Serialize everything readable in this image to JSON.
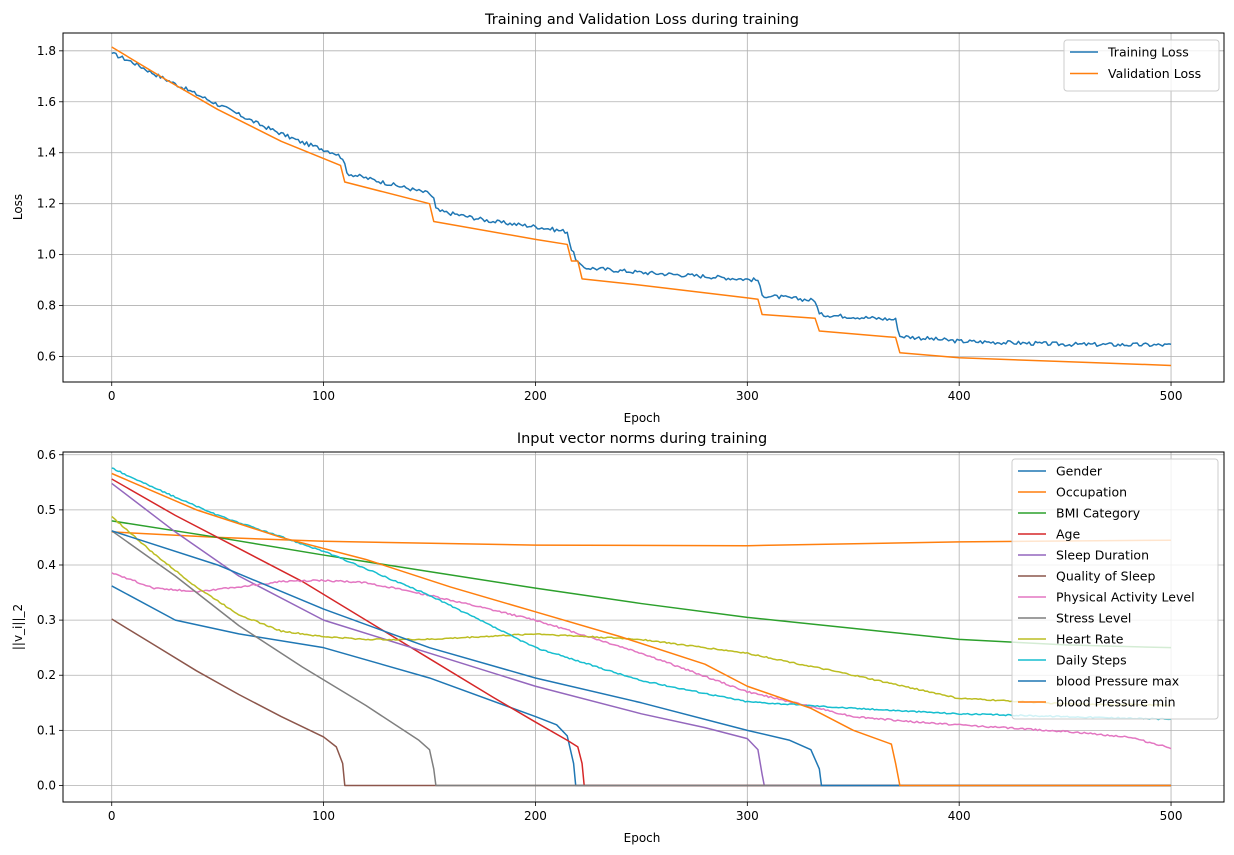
{
  "chart_data": [
    {
      "type": "line",
      "title": "Training and Validation Loss during training",
      "xlabel": "Epoch",
      "ylabel": "Loss",
      "xlim": [
        -23,
        525
      ],
      "ylim": [
        0.5,
        1.87
      ],
      "xticks": [
        0,
        100,
        200,
        300,
        400,
        500
      ],
      "yticks": [
        0.6,
        0.8,
        1.0,
        1.2,
        1.4,
        1.6,
        1.8
      ],
      "ytick_decimals": 1,
      "grid": true,
      "legend_position": "top-right",
      "series": [
        {
          "name": "Training Loss",
          "color": "#1f77b4",
          "noise": 0.008,
          "points": [
            [
              0,
              1.79
            ],
            [
              10,
              1.755
            ],
            [
              20,
              1.71
            ],
            [
              30,
              1.67
            ],
            [
              50,
              1.59
            ],
            [
              70,
              1.51
            ],
            [
              90,
              1.44
            ],
            [
              105,
              1.4
            ],
            [
              109,
              1.38
            ],
            [
              111,
              1.32
            ],
            [
              130,
              1.28
            ],
            [
              150,
              1.24
            ],
            [
              152,
              1.22
            ],
            [
              153,
              1.18
            ],
            [
              155,
              1.17
            ],
            [
              180,
              1.13
            ],
            [
              200,
              1.11
            ],
            [
              215,
              1.09
            ],
            [
              217,
              1.02
            ],
            [
              220,
              0.97
            ],
            [
              222,
              0.95
            ],
            [
              250,
              0.93
            ],
            [
              280,
              0.915
            ],
            [
              305,
              0.9
            ],
            [
              307,
              0.84
            ],
            [
              332,
              0.82
            ],
            [
              334,
              0.765
            ],
            [
              370,
              0.745
            ],
            [
              372,
              0.68
            ],
            [
              400,
              0.66
            ],
            [
              450,
              0.648
            ],
            [
              500,
              0.645
            ]
          ]
        },
        {
          "name": "Validation Loss",
          "color": "#ff7f0e",
          "noise": 0,
          "points": [
            [
              0,
              1.815
            ],
            [
              25,
              1.69
            ],
            [
              50,
              1.57
            ],
            [
              80,
              1.445
            ],
            [
              108,
              1.35
            ],
            [
              110,
              1.285
            ],
            [
              150,
              1.2
            ],
            [
              152,
              1.13
            ],
            [
              200,
              1.06
            ],
            [
              215,
              1.04
            ],
            [
              217,
              0.975
            ],
            [
              220,
              0.975
            ],
            [
              222,
              0.905
            ],
            [
              250,
              0.88
            ],
            [
              300,
              0.83
            ],
            [
              305,
              0.825
            ],
            [
              307,
              0.765
            ],
            [
              332,
              0.75
            ],
            [
              334,
              0.7
            ],
            [
              370,
              0.675
            ],
            [
              372,
              0.615
            ],
            [
              400,
              0.595
            ],
            [
              450,
              0.58
            ],
            [
              500,
              0.565
            ]
          ]
        }
      ]
    },
    {
      "type": "line",
      "title": "Input vector norms during training",
      "xlabel": "Epoch",
      "ylabel": "||v_i||_2",
      "xlim": [
        -23,
        525
      ],
      "ylim": [
        -0.03,
        0.605
      ],
      "xticks": [
        0,
        100,
        200,
        300,
        400,
        500
      ],
      "yticks": [
        0.0,
        0.1,
        0.2,
        0.3,
        0.4,
        0.5,
        0.6
      ],
      "ytick_decimals": 1,
      "grid": true,
      "legend_position": "top-right",
      "series": [
        {
          "name": "Gender",
          "color": "#1f77b4",
          "noise": 0,
          "points": [
            [
              0,
              0.362
            ],
            [
              30,
              0.3
            ],
            [
              60,
              0.275
            ],
            [
              100,
              0.25
            ],
            [
              150,
              0.195
            ],
            [
              200,
              0.125
            ],
            [
              210,
              0.11
            ],
            [
              215,
              0.09
            ],
            [
              218,
              0.04
            ],
            [
              219,
              0.0
            ],
            [
              500,
              0.0
            ]
          ]
        },
        {
          "name": "Occupation",
          "color": "#ff7f0e",
          "noise": 0,
          "points": [
            [
              0,
              0.46
            ],
            [
              50,
              0.45
            ],
            [
              100,
              0.443
            ],
            [
              200,
              0.436
            ],
            [
              300,
              0.435
            ],
            [
              400,
              0.442
            ],
            [
              500,
              0.445
            ]
          ]
        },
        {
          "name": "BMI Category",
          "color": "#2ca02c",
          "noise": 0,
          "points": [
            [
              0,
              0.48
            ],
            [
              50,
              0.45
            ],
            [
              100,
              0.418
            ],
            [
              150,
              0.388
            ],
            [
              200,
              0.358
            ],
            [
              250,
              0.33
            ],
            [
              300,
              0.305
            ],
            [
              350,
              0.285
            ],
            [
              400,
              0.265
            ],
            [
              450,
              0.255
            ],
            [
              500,
              0.25
            ]
          ]
        },
        {
          "name": "Age",
          "color": "#d62728",
          "noise": 0,
          "points": [
            [
              0,
              0.556
            ],
            [
              30,
              0.49
            ],
            [
              60,
              0.43
            ],
            [
              90,
              0.37
            ],
            [
              120,
              0.3
            ],
            [
              150,
              0.23
            ],
            [
              180,
              0.16
            ],
            [
              200,
              0.115
            ],
            [
              215,
              0.082
            ],
            [
              220,
              0.07
            ],
            [
              222,
              0.04
            ],
            [
              223,
              0.0
            ],
            [
              500,
              0.0
            ]
          ]
        },
        {
          "name": "Sleep Duration",
          "color": "#9467bd",
          "noise": 0,
          "points": [
            [
              0,
              0.548
            ],
            [
              30,
              0.46
            ],
            [
              60,
              0.38
            ],
            [
              100,
              0.3
            ],
            [
              150,
              0.24
            ],
            [
              200,
              0.18
            ],
            [
              250,
              0.13
            ],
            [
              280,
              0.105
            ],
            [
              300,
              0.085
            ],
            [
              305,
              0.065
            ],
            [
              307,
              0.02
            ],
            [
              308,
              0.0
            ],
            [
              500,
              0.0
            ]
          ]
        },
        {
          "name": "Quality of Sleep",
          "color": "#8c564b",
          "noise": 0,
          "points": [
            [
              0,
              0.302
            ],
            [
              20,
              0.255
            ],
            [
              40,
              0.208
            ],
            [
              60,
              0.165
            ],
            [
              80,
              0.125
            ],
            [
              100,
              0.088
            ],
            [
              106,
              0.07
            ],
            [
              109,
              0.04
            ],
            [
              110,
              0.0
            ],
            [
              500,
              0.0
            ]
          ]
        },
        {
          "name": "Physical Activity Level",
          "color": "#e377c2",
          "noise": 0.0015,
          "points": [
            [
              0,
              0.386
            ],
            [
              20,
              0.358
            ],
            [
              40,
              0.352
            ],
            [
              60,
              0.36
            ],
            [
              80,
              0.37
            ],
            [
              100,
              0.372
            ],
            [
              120,
              0.368
            ],
            [
              150,
              0.345
            ],
            [
              200,
              0.3
            ],
            [
              250,
              0.24
            ],
            [
              300,
              0.17
            ],
            [
              350,
              0.125
            ],
            [
              380,
              0.115
            ],
            [
              400,
              0.11
            ],
            [
              450,
              0.098
            ],
            [
              480,
              0.088
            ],
            [
              500,
              0.068
            ]
          ]
        },
        {
          "name": "Stress Level",
          "color": "#7f7f7f",
          "noise": 0,
          "points": [
            [
              0,
              0.462
            ],
            [
              30,
              0.38
            ],
            [
              60,
              0.29
            ],
            [
              90,
              0.215
            ],
            [
              120,
              0.145
            ],
            [
              145,
              0.082
            ],
            [
              150,
              0.065
            ],
            [
              152,
              0.03
            ],
            [
              153,
              0.0
            ],
            [
              500,
              0.0
            ]
          ]
        },
        {
          "name": "Heart Rate",
          "color": "#bcbd22",
          "noise": 0.0012,
          "points": [
            [
              0,
              0.488
            ],
            [
              20,
              0.42
            ],
            [
              40,
              0.36
            ],
            [
              60,
              0.31
            ],
            [
              80,
              0.28
            ],
            [
              100,
              0.27
            ],
            [
              120,
              0.265
            ],
            [
              150,
              0.265
            ],
            [
              200,
              0.275
            ],
            [
              250,
              0.265
            ],
            [
              300,
              0.24
            ],
            [
              350,
              0.2
            ],
            [
              400,
              0.158
            ],
            [
              450,
              0.148
            ],
            [
              500,
              0.146
            ]
          ]
        },
        {
          "name": "Daily Steps",
          "color": "#17becf",
          "noise": 0.0012,
          "points": [
            [
              0,
              0.576
            ],
            [
              20,
              0.54
            ],
            [
              50,
              0.49
            ],
            [
              100,
              0.425
            ],
            [
              150,
              0.345
            ],
            [
              200,
              0.25
            ],
            [
              250,
              0.19
            ],
            [
              300,
              0.152
            ],
            [
              350,
              0.14
            ],
            [
              400,
              0.13
            ],
            [
              450,
              0.125
            ],
            [
              500,
              0.12
            ]
          ]
        },
        {
          "name": "blood Pressure max",
          "color": "#1f77b4",
          "noise": 0,
          "points": [
            [
              0,
              0.462
            ],
            [
              50,
              0.4
            ],
            [
              100,
              0.32
            ],
            [
              150,
              0.25
            ],
            [
              200,
              0.195
            ],
            [
              250,
              0.15
            ],
            [
              300,
              0.1
            ],
            [
              320,
              0.082
            ],
            [
              330,
              0.065
            ],
            [
              334,
              0.03
            ],
            [
              335,
              0.0
            ],
            [
              500,
              0.0
            ]
          ]
        },
        {
          "name": "blood Pressure min",
          "color": "#ff7f0e",
          "noise": 0,
          "points": [
            [
              0,
              0.566
            ],
            [
              40,
              0.5
            ],
            [
              80,
              0.45
            ],
            [
              120,
              0.41
            ],
            [
              160,
              0.36
            ],
            [
              200,
              0.315
            ],
            [
              240,
              0.27
            ],
            [
              280,
              0.22
            ],
            [
              300,
              0.18
            ],
            [
              330,
              0.14
            ],
            [
              350,
              0.1
            ],
            [
              368,
              0.075
            ],
            [
              370,
              0.04
            ],
            [
              372,
              0.0
            ],
            [
              500,
              0.0
            ]
          ]
        }
      ]
    }
  ]
}
